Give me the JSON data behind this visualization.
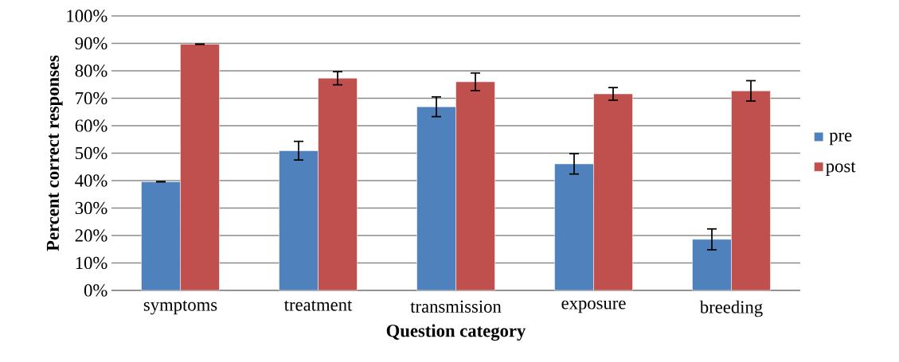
{
  "chart_data": {
    "type": "bar",
    "xlabel": "Question category",
    "ylabel": "Percent correct responses",
    "categories": [
      "symptoms",
      "treatment",
      "transmission",
      "exposure",
      "breeding"
    ],
    "series": [
      {
        "name": "pre",
        "color": "#4f81bd",
        "values": [
          39.6,
          50.9,
          66.9,
          46.1,
          18.6
        ],
        "errors": [
          0,
          3.4,
          3.6,
          3.7,
          3.8
        ]
      },
      {
        "name": "post",
        "color": "#c0504d",
        "values": [
          89.7,
          77.3,
          76.0,
          71.6,
          72.7
        ],
        "errors": [
          0,
          2.4,
          3.2,
          2.3,
          3.7
        ]
      }
    ],
    "ylim": [
      0,
      100
    ],
    "yticks": [
      {
        "value": 0,
        "label": "0%"
      },
      {
        "value": 10,
        "label": "10%"
      },
      {
        "value": 20,
        "label": "20%"
      },
      {
        "value": 30,
        "label": "30%"
      },
      {
        "value": 40,
        "label": "40%"
      },
      {
        "value": 50,
        "label": "50%"
      },
      {
        "value": 60,
        "label": "60%"
      },
      {
        "value": 70,
        "label": "70%"
      },
      {
        "value": 80,
        "label": "80%"
      },
      {
        "value": 90,
        "label": "90%"
      },
      {
        "value": 100,
        "label": "100%"
      }
    ],
    "grid": "y",
    "legend": "right"
  }
}
